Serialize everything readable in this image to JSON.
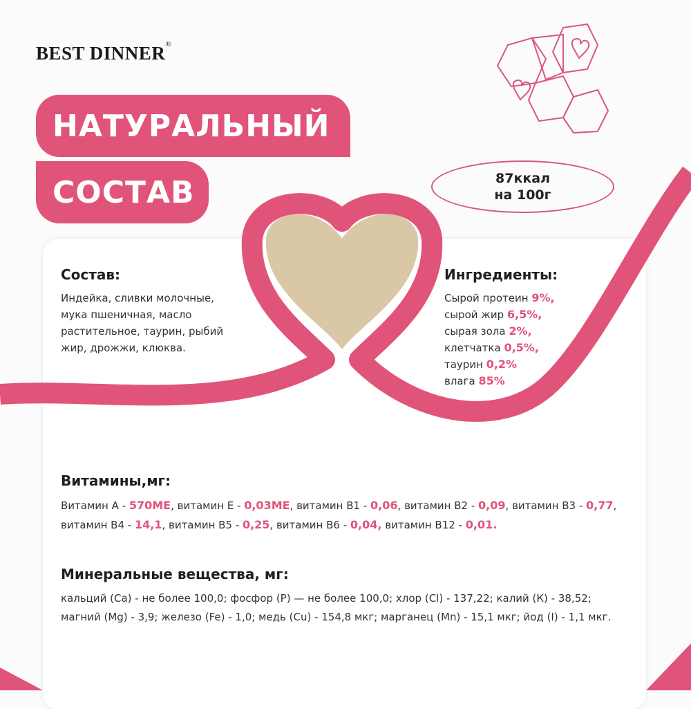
{
  "brand": {
    "name": "BEST DINNER",
    "mark": "®"
  },
  "title": {
    "line1": "НАТУРАЛЬНЫЙ",
    "line2": "СОСТАВ"
  },
  "energy": {
    "kcal": "87ккал",
    "per": "на 100г"
  },
  "composition": {
    "heading": "Состав:",
    "lines": [
      "Индейка, сливки молочные,",
      "мука пшеничная, масло",
      "растительное, таурин, рыбий",
      "жир, дрожжи, клюква."
    ]
  },
  "ingredients": {
    "heading": "Ингредиенты:",
    "items": [
      {
        "label": "Сырой протеин",
        "value": "9%,"
      },
      {
        "label": "сырой жир",
        "value": "6,5%,"
      },
      {
        "label": "сырая зола",
        "value": "2%,"
      },
      {
        "label": "клетчатка",
        "value": "0,5%,"
      },
      {
        "label": "таурин",
        "value": "0,2%"
      },
      {
        "label": "влага",
        "value": "85%"
      }
    ]
  },
  "vitamins": {
    "heading": "Витамины,мг:",
    "items": [
      {
        "label": "Витамин A - ",
        "value": "570МЕ",
        "sep": ", "
      },
      {
        "label": "витамин Е - ",
        "value": "0,03МЕ",
        "sep": ", "
      },
      {
        "label": "витамин В1 - ",
        "value": "0,06",
        "sep": ", "
      },
      {
        "label": "витамин В2 - ",
        "value": "0,09",
        "sep": ", "
      },
      {
        "label": "витамин В3 - ",
        "value": "0,77",
        "sep": ", "
      },
      {
        "label": "витамин В4 - ",
        "value": "14,1",
        "sep": ", "
      },
      {
        "label": "витамин В5 - ",
        "value": "0,25",
        "sep": ", "
      },
      {
        "label": "витамин В6 - ",
        "value": "0,04,",
        "sep": " "
      },
      {
        "label": "витамин В12 - ",
        "value": "0,01.",
        "sep": ""
      }
    ]
  },
  "minerals": {
    "heading": "Минеральные вещества, мг:",
    "text": "кальций (Са) - не более 100,0; фосфор (Р) — не более 100,0; хлор (Cl) - 137,22; калий (К) - 38,52; магний (Mg) - 3,9; железо (Fe) - 1,0; медь (Cu) - 154,8 мкг; марганец (Mn) - 15,1 мкг; йод (I) - 1,1 мкг."
  },
  "colors": {
    "accent": "#e05479",
    "text": "#222222",
    "filling": "#d9c7a6"
  }
}
